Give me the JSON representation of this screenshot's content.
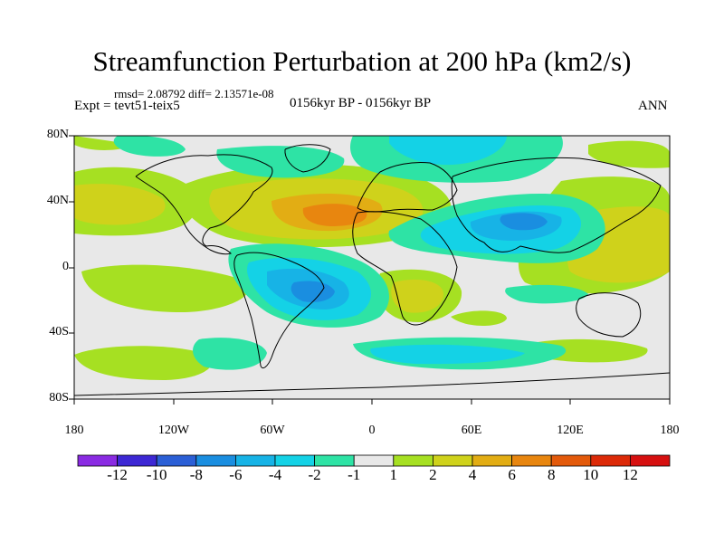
{
  "title": "Streamfunction Perturbation at 200 hPa (km2/s)",
  "stats": "rmsd= 2.08792 diff= 2.13571e-08",
  "experiment": "Expt = tevt51-teix5",
  "period": "0156kyr BP - 0156kyr BP",
  "season": "ANN",
  "lat_labels": [
    "80N",
    "40N",
    "0",
    "40S",
    "80S"
  ],
  "lon_labels": [
    "180",
    "120W",
    "60W",
    "0",
    "60E",
    "120E",
    "180"
  ],
  "colorbar": {
    "labels": [
      "-12",
      "-10",
      "-8",
      "-6",
      "-4",
      "-2",
      "-1",
      "1",
      "2",
      "4",
      "6",
      "8",
      "10",
      "12"
    ],
    "colors": [
      "#8a2be2",
      "#3d28d4",
      "#2b5fd6",
      "#1a8ee0",
      "#17b3e6",
      "#14d2e6",
      "#2ee3a5",
      "#e8e8e8",
      "#a6e022",
      "#cfd21b",
      "#e2ad14",
      "#e8860f",
      "#e35a0b",
      "#dc2a08",
      "#d61010"
    ]
  },
  "colors": {
    "background": "#ffffff",
    "neutral": "#e8e8e8",
    "coast": "#000000"
  }
}
